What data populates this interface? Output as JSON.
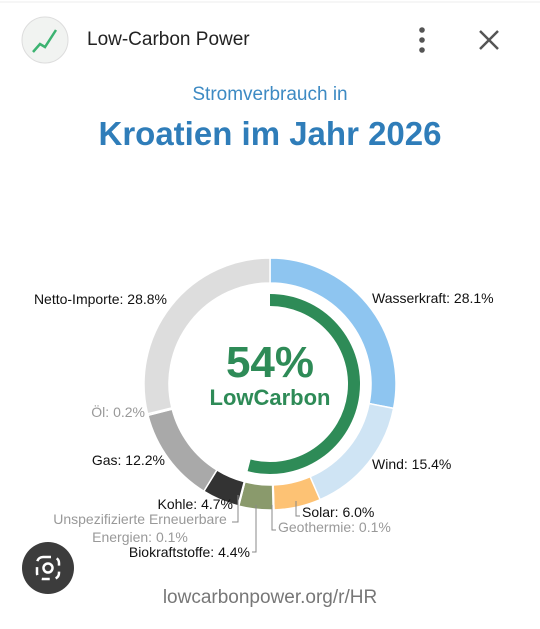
{
  "header": {
    "title": "Low-Carbon Power"
  },
  "chart_data": {
    "type": "donut",
    "subtitle": "Stromverbrauch in",
    "title": "Kroatien im Jahr 2026",
    "center_value": {
      "value": 54,
      "label": "54%"
    },
    "center_label": "LowCarbon",
    "center_color": "#2e8b57",
    "labels": [
      "Wasserkraft: 28.1%",
      "Wind: 15.4%",
      "Solar: 6.0%",
      "Geothermie: 0.1%",
      "Biokraftstoffe: 4.4%",
      "Unspezifizierte Erneuerbare Energien: 0.1%",
      "Kohle: 4.7%",
      "Gas: 12.2%",
      "Öl: 0.2%",
      "Netto-Importe: 28.8%"
    ],
    "values": [
      28.1,
      15.4,
      6.0,
      0.1,
      4.4,
      0.1,
      4.7,
      12.2,
      0.2,
      28.8
    ],
    "colors": [
      "#8ec5f0",
      "#cfe4f4",
      "#fdc274",
      "#c45a3a",
      "#8a9a6c",
      "#6aa84f",
      "#333333",
      "#a9a9a9",
      "#777777",
      "#dddddd"
    ]
  },
  "footer": {
    "url": "lowcarbonpower.org/r/HR"
  }
}
